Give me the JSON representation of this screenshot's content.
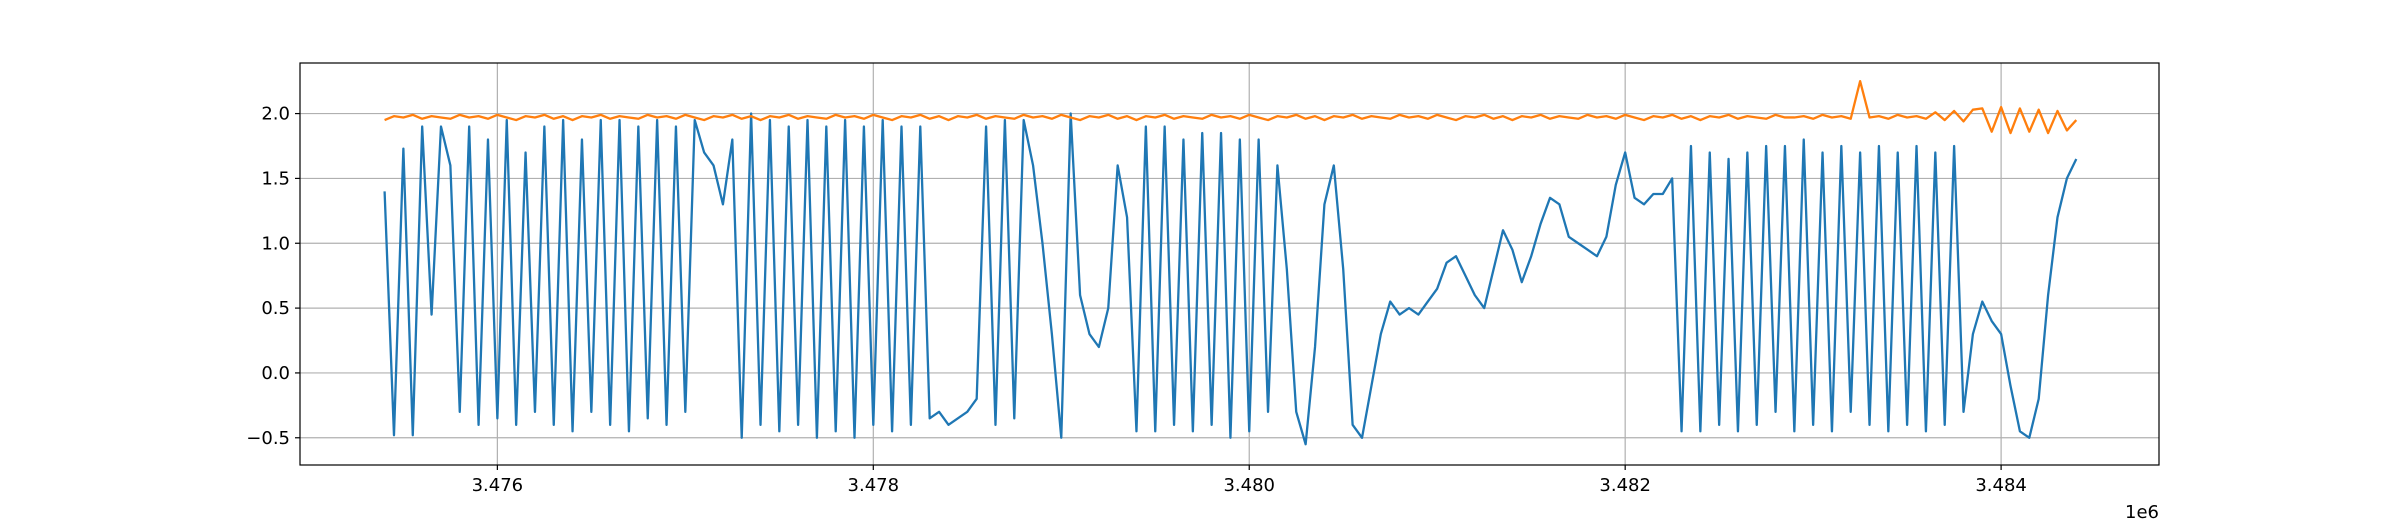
{
  "chart_data": {
    "type": "line",
    "x_offset_label": "1e6",
    "xlim": [
      3474950,
      3484840
    ],
    "ylim": [
      -0.71,
      2.39
    ],
    "xticks": [
      {
        "value": 3476000,
        "label": "3.476"
      },
      {
        "value": 3478000,
        "label": "3.478"
      },
      {
        "value": 3480000,
        "label": "3.480"
      },
      {
        "value": 3482000,
        "label": "3.482"
      },
      {
        "value": 3484000,
        "label": "3.484"
      }
    ],
    "yticks": [
      {
        "value": -0.5,
        "label": "−0.5"
      },
      {
        "value": 0,
        "label": "0.0"
      },
      0.5,
      {
        "value": 1,
        "label": "1.0"
      },
      1.5,
      {
        "value": 2,
        "label": "2.0"
      }
    ],
    "grid": true,
    "x": [
      3475400,
      3475450,
      3475500,
      3475550,
      3475600,
      3475650,
      3475700,
      3475750,
      3475800,
      3475850,
      3475900,
      3475950,
      3476000,
      3476050,
      3476100,
      3476150,
      3476200,
      3476250,
      3476300,
      3476350,
      3476400,
      3476450,
      3476500,
      3476550,
      3476600,
      3476650,
      3476700,
      3476750,
      3476800,
      3476850,
      3476900,
      3476950,
      3477000,
      3477050,
      3477100,
      3477150,
      3477200,
      3477250,
      3477300,
      3477350,
      3477400,
      3477450,
      3477500,
      3477550,
      3477600,
      3477650,
      3477700,
      3477750,
      3477800,
      3477850,
      3477900,
      3477950,
      3478000,
      3478050,
      3478100,
      3478150,
      3478200,
      3478250,
      3478300,
      3478350,
      3478400,
      3478450,
      3478500,
      3478550,
      3478600,
      3478650,
      3478700,
      3478750,
      3478800,
      3478850,
      3478900,
      3478950,
      3479000,
      3479050,
      3479100,
      3479150,
      3479200,
      3479250,
      3479300,
      3479350,
      3479400,
      3479450,
      3479500,
      3479550,
      3479600,
      3479650,
      3479700,
      3479750,
      3479800,
      3479850,
      3479900,
      3479950,
      3480000,
      3480050,
      3480100,
      3480150,
      3480200,
      3480250,
      3480300,
      3480350,
      3480400,
      3480450,
      3480500,
      3480550,
      3480600,
      3480650,
      3480700,
      3480750,
      3480800,
      3480850,
      3480900,
      3480950,
      3481000,
      3481050,
      3481100,
      3481150,
      3481200,
      3481250,
      3481300,
      3481350,
      3481400,
      3481450,
      3481500,
      3481550,
      3481600,
      3481650,
      3481700,
      3481750,
      3481800,
      3481850,
      3481900,
      3481950,
      3482000,
      3482050,
      3482100,
      3482150,
      3482200,
      3482250,
      3482300,
      3482350,
      3482400,
      3482450,
      3482500,
      3482550,
      3482600,
      3482650,
      3482700,
      3482750,
      3482800,
      3482850,
      3482900,
      3482950,
      3483000,
      3483050,
      3483100,
      3483150,
      3483200,
      3483250,
      3483300,
      3483350,
      3483400,
      3483450,
      3483500,
      3483550,
      3483600,
      3483650,
      3483700,
      3483750,
      3483800,
      3483850,
      3483900,
      3483950,
      3484000,
      3484050,
      3484100,
      3484150,
      3484200,
      3484250,
      3484300,
      3484350,
      3484400
    ],
    "series": [
      {
        "color": "#1f77b4",
        "values": [
          1.4,
          -0.48,
          1.73,
          -0.48,
          1.9,
          0.45,
          1.9,
          1.6,
          -0.3,
          1.9,
          -0.4,
          1.8,
          -0.35,
          1.95,
          -0.4,
          1.7,
          -0.3,
          1.9,
          -0.4,
          1.95,
          -0.45,
          1.8,
          -0.3,
          1.95,
          -0.4,
          1.95,
          -0.45,
          1.9,
          -0.35,
          1.95,
          -0.4,
          1.9,
          -0.3,
          1.95,
          1.7,
          1.6,
          1.3,
          1.8,
          -0.5,
          2.0,
          -0.4,
          1.95,
          -0.45,
          1.9,
          -0.4,
          1.95,
          -0.5,
          1.9,
          -0.45,
          1.95,
          -0.5,
          1.9,
          -0.4,
          1.95,
          -0.45,
          1.9,
          -0.4,
          1.9,
          -0.35,
          -0.3,
          -0.4,
          -0.35,
          -0.3,
          -0.2,
          1.9,
          -0.4,
          1.95,
          -0.35,
          1.95,
          1.6,
          1.0,
          0.3,
          -0.5,
          2.0,
          0.6,
          0.3,
          0.2,
          0.5,
          1.6,
          1.2,
          -0.45,
          1.9,
          -0.45,
          1.9,
          -0.4,
          1.8,
          -0.45,
          1.85,
          -0.4,
          1.85,
          -0.5,
          1.8,
          -0.45,
          1.8,
          -0.3,
          1.6,
          0.8,
          -0.3,
          -0.55,
          0.2,
          1.3,
          1.6,
          0.8,
          -0.4,
          -0.5,
          -0.1,
          0.3,
          0.55,
          0.45,
          0.5,
          0.45,
          0.55,
          0.65,
          0.85,
          0.9,
          0.75,
          0.6,
          0.5,
          0.8,
          1.1,
          0.95,
          0.7,
          0.9,
          1.15,
          1.35,
          1.3,
          1.05,
          1.0,
          0.95,
          0.9,
          1.05,
          1.45,
          1.7,
          1.35,
          1.3,
          1.38,
          1.38,
          1.5,
          -0.45,
          1.75,
          -0.45,
          1.7,
          -0.4,
          1.65,
          -0.45,
          1.7,
          -0.4,
          1.75,
          -0.3,
          1.75,
          -0.45,
          1.8,
          -0.4,
          1.7,
          -0.45,
          1.75,
          -0.3,
          1.7,
          -0.4,
          1.75,
          -0.45,
          1.7,
          -0.4,
          1.75,
          -0.45,
          1.7,
          -0.4,
          1.75,
          -0.3,
          0.3,
          0.55,
          0.4,
          0.3,
          -0.1,
          -0.45,
          -0.5,
          -0.2,
          0.6,
          1.2,
          1.5,
          1.65
        ]
      },
      {
        "color": "#ff7f0e",
        "values": [
          1.95,
          1.98,
          1.97,
          1.99,
          1.96,
          1.98,
          1.97,
          1.96,
          1.99,
          1.97,
          1.98,
          1.96,
          1.99,
          1.97,
          1.95,
          1.98,
          1.97,
          1.99,
          1.96,
          1.98,
          1.95,
          1.98,
          1.97,
          1.99,
          1.96,
          1.98,
          1.97,
          1.96,
          1.99,
          1.97,
          1.98,
          1.96,
          1.99,
          1.97,
          1.95,
          1.98,
          1.97,
          1.99,
          1.96,
          1.98,
          1.95,
          1.98,
          1.97,
          1.99,
          1.96,
          1.98,
          1.97,
          1.96,
          1.99,
          1.97,
          1.98,
          1.96,
          1.99,
          1.97,
          1.95,
          1.98,
          1.97,
          1.99,
          1.96,
          1.98,
          1.95,
          1.98,
          1.97,
          1.99,
          1.96,
          1.98,
          1.97,
          1.96,
          1.99,
          1.97,
          1.98,
          1.96,
          1.99,
          1.97,
          1.95,
          1.98,
          1.97,
          1.99,
          1.96,
          1.98,
          1.95,
          1.98,
          1.97,
          1.99,
          1.96,
          1.98,
          1.97,
          1.96,
          1.99,
          1.97,
          1.98,
          1.96,
          1.99,
          1.97,
          1.95,
          1.98,
          1.97,
          1.99,
          1.96,
          1.98,
          1.95,
          1.98,
          1.97,
          1.99,
          1.96,
          1.98,
          1.97,
          1.96,
          1.99,
          1.97,
          1.98,
          1.96,
          1.99,
          1.97,
          1.95,
          1.98,
          1.97,
          1.99,
          1.96,
          1.98,
          1.95,
          1.98,
          1.97,
          1.99,
          1.96,
          1.98,
          1.97,
          1.96,
          1.99,
          1.97,
          1.98,
          1.96,
          1.99,
          1.97,
          1.95,
          1.98,
          1.97,
          1.99,
          1.96,
          1.98,
          1.95,
          1.98,
          1.97,
          1.99,
          1.96,
          1.98,
          1.97,
          1.96,
          1.99,
          1.97,
          1.97,
          1.98,
          1.96,
          1.99,
          1.97,
          1.98,
          1.96,
          2.25,
          1.97,
          1.98,
          1.96,
          1.99,
          1.97,
          1.98,
          1.96,
          2.01,
          1.95,
          2.02,
          1.94,
          2.03,
          2.04,
          1.86,
          2.05,
          1.85,
          2.04,
          1.86,
          2.03,
          1.85,
          2.02,
          1.87,
          1.95
        ]
      }
    ]
  }
}
